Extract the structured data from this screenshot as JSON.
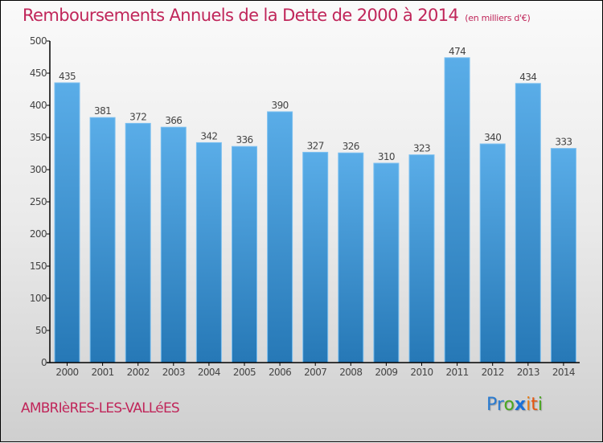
{
  "header": {
    "title": "Remboursements Annuels de la Dette de 2000 à 2014",
    "subtitle": "(en milliers d'€)"
  },
  "footer": {
    "commune": "AMBRIèRES-LES-VALLéES",
    "logo_letters": [
      {
        "char": "P",
        "color": "#2a7bd0"
      },
      {
        "char": "r",
        "color": "#2a7bd0"
      },
      {
        "char": "o",
        "color": "#4aa820"
      },
      {
        "char": "x",
        "color": "#1a6fd6"
      },
      {
        "char": "i",
        "color": "#e87c12"
      },
      {
        "char": "t",
        "color": "#e8560f"
      },
      {
        "char": "i",
        "color": "#4aa820"
      }
    ]
  },
  "colors": {
    "title": "#c0265a",
    "bar_top": "#5aade8",
    "bar_bottom": "#2678b6",
    "bar_edge": "#7cc0f0"
  },
  "chart_data": {
    "type": "bar",
    "title": "Remboursements Annuels de la Dette de 2000 à 2014",
    "subtitle": "(en milliers d'€)",
    "xlabel": "",
    "ylabel": "",
    "categories": [
      "2000",
      "2001",
      "2002",
      "2003",
      "2004",
      "2005",
      "2006",
      "2007",
      "2008",
      "2009",
      "2010",
      "2011",
      "2012",
      "2013",
      "2014"
    ],
    "values": [
      435,
      381,
      372,
      366,
      342,
      336,
      390,
      327,
      326,
      310,
      323,
      474,
      340,
      434,
      333
    ],
    "data_labels": [
      "435",
      "381",
      "372",
      "366",
      "342",
      "336",
      "390",
      "327",
      "326",
      "310",
      "323",
      "474",
      "340",
      "434",
      "333"
    ],
    "ylim": [
      0,
      500
    ],
    "yticks": [
      0,
      50,
      100,
      150,
      200,
      250,
      300,
      350,
      400,
      450,
      500
    ],
    "ytick_labels": [
      "0",
      "50",
      "100",
      "150",
      "200",
      "250",
      "300",
      "350",
      "400",
      "450",
      "500"
    ],
    "grid": false,
    "legend": "none"
  }
}
